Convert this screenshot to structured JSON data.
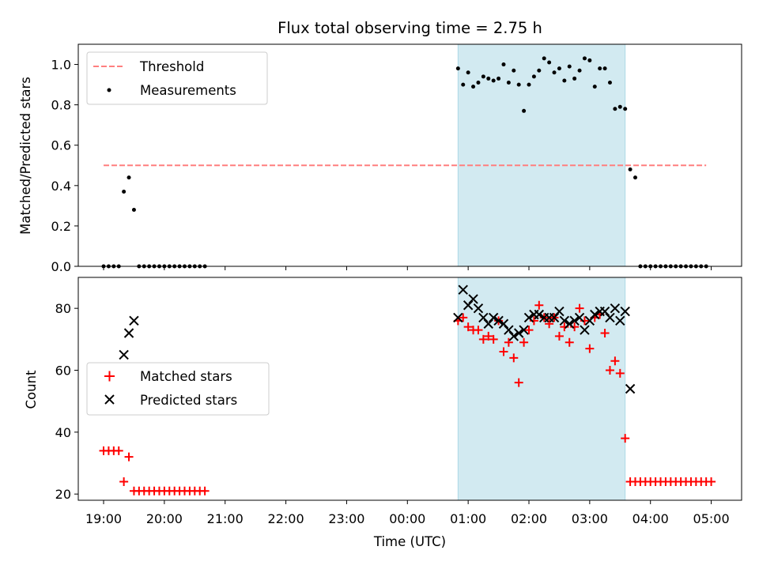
{
  "chart_data": [
    {
      "type": "scatter",
      "title": "Flux total observing time = 2.75 h",
      "ylabel": "Matched/Predicted stars",
      "xlabel": "",
      "xlim": [
        "18:35",
        "05:30"
      ],
      "ylim": [
        0,
        1.1
      ],
      "yticks": [
        0.0,
        0.2,
        0.4,
        0.6,
        0.8,
        1.0
      ],
      "ytick_labels": [
        "0.0",
        "0.2",
        "0.4",
        "0.6",
        "0.8",
        "1.0"
      ],
      "shaded_span": [
        "00:50",
        "03:35"
      ],
      "shaded_color": "#add8e6",
      "legend": {
        "location": "upper left",
        "entries": [
          "Threshold",
          "Measurements"
        ]
      },
      "series": [
        {
          "name": "Threshold",
          "kind": "line",
          "style": "dashed",
          "color": "#ff7f7f",
          "x": [
            "19:00",
            "04:55"
          ],
          "y": [
            0.5,
            0.5
          ]
        },
        {
          "name": "Measurements",
          "kind": "points",
          "color": "#000000",
          "x": [
            "19:00",
            "19:05",
            "19:10",
            "19:15",
            "19:20",
            "19:25",
            "19:30",
            "19:35",
            "19:40",
            "19:45",
            "19:50",
            "19:55",
            "20:00",
            "20:05",
            "20:10",
            "20:15",
            "20:20",
            "20:25",
            "20:30",
            "20:35",
            "20:40",
            "00:50",
            "00:55",
            "01:00",
            "01:05",
            "01:10",
            "01:15",
            "01:20",
            "01:25",
            "01:30",
            "01:35",
            "01:40",
            "01:45",
            "01:50",
            "01:55",
            "02:00",
            "02:05",
            "02:10",
            "02:15",
            "02:20",
            "02:25",
            "02:30",
            "02:35",
            "02:40",
            "02:45",
            "02:50",
            "02:55",
            "03:00",
            "03:05",
            "03:10",
            "03:15",
            "03:20",
            "03:25",
            "03:30",
            "03:35",
            "03:40",
            "03:45",
            "03:50",
            "03:55",
            "04:00",
            "04:05",
            "04:10",
            "04:15",
            "04:20",
            "04:25",
            "04:30",
            "04:35",
            "04:40",
            "04:45",
            "04:50",
            "04:55"
          ],
          "y": [
            0,
            0,
            0,
            0,
            0.37,
            0.44,
            0.28,
            0,
            0,
            0,
            0,
            0,
            0,
            0,
            0,
            0,
            0,
            0,
            0,
            0,
            0,
            0.98,
            0.9,
            0.96,
            0.89,
            0.91,
            0.94,
            0.93,
            0.92,
            0.93,
            1.0,
            0.91,
            0.97,
            0.9,
            0.77,
            0.9,
            0.94,
            0.97,
            1.03,
            1.01,
            0.96,
            0.98,
            0.92,
            0.99,
            0.93,
            0.97,
            1.03,
            1.02,
            0.89,
            0.98,
            0.98,
            0.91,
            0.78,
            0.79,
            0.78,
            0.48,
            0.44,
            0,
            0,
            0,
            0,
            0,
            0,
            0,
            0,
            0,
            0,
            0,
            0,
            0,
            0
          ]
        }
      ]
    },
    {
      "type": "scatter",
      "title": "",
      "ylabel": "Count",
      "xlabel": "Time (UTC)",
      "xlim": [
        "18:35",
        "05:30"
      ],
      "ylim": [
        18,
        90
      ],
      "yticks": [
        20,
        40,
        60,
        80
      ],
      "ytick_labels": [
        "20",
        "40",
        "60",
        "80"
      ],
      "xticks": [
        "19:00",
        "20:00",
        "21:00",
        "22:00",
        "23:00",
        "00:00",
        "01:00",
        "02:00",
        "03:00",
        "04:00",
        "05:00"
      ],
      "xtick_labels": [
        "19:00",
        "20:00",
        "21:00",
        "22:00",
        "23:00",
        "00:00",
        "01:00",
        "02:00",
        "03:00",
        "04:00",
        "05:00"
      ],
      "shaded_span": [
        "00:50",
        "03:35"
      ],
      "shaded_color": "#add8e6",
      "legend": {
        "location": "center left",
        "entries": [
          "Matched stars",
          "Predicted stars"
        ]
      },
      "series": [
        {
          "name": "Matched stars",
          "marker": "plus",
          "color": "#ff0000",
          "x": [
            "19:00",
            "19:05",
            "19:10",
            "19:15",
            "19:20",
            "19:25",
            "19:30",
            "19:35",
            "19:40",
            "19:45",
            "19:50",
            "19:55",
            "20:00",
            "20:05",
            "20:10",
            "20:15",
            "20:20",
            "20:25",
            "20:30",
            "20:35",
            "20:40",
            "00:50",
            "00:55",
            "01:00",
            "01:05",
            "01:10",
            "01:15",
            "01:20",
            "01:25",
            "01:30",
            "01:35",
            "01:40",
            "01:45",
            "01:50",
            "01:55",
            "02:00",
            "02:05",
            "02:10",
            "02:15",
            "02:20",
            "02:25",
            "02:30",
            "02:35",
            "02:40",
            "02:45",
            "02:50",
            "02:55",
            "03:00",
            "03:05",
            "03:10",
            "03:15",
            "03:20",
            "03:25",
            "03:30",
            "03:35",
            "03:40",
            "03:45",
            "03:50",
            "03:55",
            "04:00",
            "04:05",
            "04:10",
            "04:15",
            "04:20",
            "04:25",
            "04:30",
            "04:35",
            "04:40",
            "04:45",
            "04:50",
            "04:55",
            "05:00"
          ],
          "y": [
            34,
            34,
            34,
            34,
            24,
            32,
            21,
            21,
            21,
            21,
            21,
            21,
            21,
            21,
            21,
            21,
            21,
            21,
            21,
            21,
            21,
            76,
            77,
            74,
            73,
            73,
            70,
            71,
            70,
            76,
            66,
            69,
            64,
            56,
            69,
            73,
            76,
            81,
            77,
            75,
            77,
            71,
            74,
            69,
            74,
            80,
            76,
            67,
            77,
            78,
            72,
            60,
            63,
            59,
            38,
            24,
            24,
            24,
            24,
            24,
            24,
            24,
            24,
            24,
            24,
            24,
            24,
            24,
            24,
            24,
            24,
            24
          ]
        },
        {
          "name": "Predicted stars",
          "marker": "x",
          "color": "#000000",
          "x": [
            "19:20",
            "19:25",
            "19:30",
            "00:50",
            "00:55",
            "01:00",
            "01:05",
            "01:10",
            "01:15",
            "01:20",
            "01:25",
            "01:30",
            "01:35",
            "01:40",
            "01:45",
            "01:50",
            "01:55",
            "02:00",
            "02:05",
            "02:10",
            "02:15",
            "02:20",
            "02:25",
            "02:30",
            "02:35",
            "02:40",
            "02:45",
            "02:50",
            "02:55",
            "03:00",
            "03:05",
            "03:10",
            "03:15",
            "03:20",
            "03:25",
            "03:30",
            "03:35",
            "03:40"
          ],
          "y": [
            65,
            72,
            76,
            77,
            86,
            81,
            83,
            80,
            77,
            75,
            77,
            76,
            75,
            73,
            71,
            72,
            73,
            77,
            78,
            78,
            77,
            77,
            77,
            79,
            76,
            75,
            76,
            77,
            73,
            76,
            78,
            79,
            79,
            77,
            80,
            76,
            79,
            54
          ]
        }
      ]
    }
  ]
}
